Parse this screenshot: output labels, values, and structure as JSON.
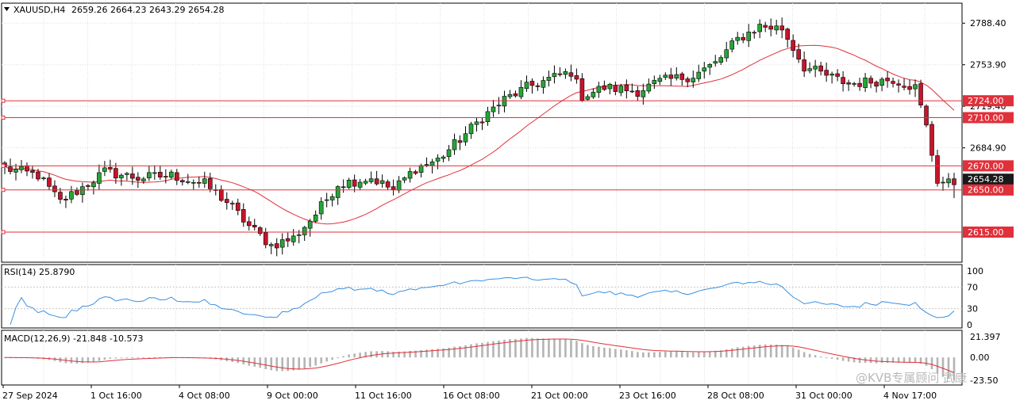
{
  "symbol_info": {
    "label": "XAUUSD,H4",
    "ohlc": "2659.26 2664.23 2643.29 2654.28"
  },
  "colors": {
    "bull": "#26a637",
    "bear": "#c8142b",
    "ma": "#e0303a",
    "level": "#e0303a",
    "rsi": "#3a8fe0",
    "macd_hist": "#b4b4b4",
    "macd_signal": "#e0303a",
    "grid": "#dddddd",
    "tag_dark": "#1a1a1a"
  },
  "watermark": "@KVB专属顾问 武康",
  "chart_data": [
    {
      "type": "candlestick",
      "title": "XAUUSD,H4",
      "ylim": [
        2590,
        2805
      ],
      "y_ticks": [
        "2788.40",
        "2753.90",
        "2719.40",
        "2684.90"
      ],
      "last_price": "2654.28",
      "horizontal_levels": [
        "2724.00",
        "2710.00",
        "2670.00",
        "2650.00",
        "2615.00"
      ],
      "x_labels": [
        "27 Sep 2024",
        "1 Oct 16:00",
        "4 Oct 08:00",
        "9 Oct 00:00",
        "11 Oct 16:00",
        "16 Oct 08:00",
        "21 Oct 00:00",
        "23 Oct 16:00",
        "28 Oct 08:00",
        "31 Oct 00:00",
        "4 Nov 17:00"
      ],
      "waypoints": [
        [
          0,
          2668
        ],
        [
          6,
          2662
        ],
        [
          10,
          2640
        ],
        [
          14,
          2652
        ],
        [
          18,
          2665
        ],
        [
          24,
          2660
        ],
        [
          30,
          2662
        ],
        [
          36,
          2655
        ],
        [
          40,
          2640
        ],
        [
          44,
          2620
        ],
        [
          48,
          2604
        ],
        [
          52,
          2610
        ],
        [
          56,
          2630
        ],
        [
          60,
          2655
        ],
        [
          66,
          2660
        ],
        [
          70,
          2650
        ],
        [
          74,
          2668
        ],
        [
          78,
          2675
        ],
        [
          82,
          2692
        ],
        [
          86,
          2710
        ],
        [
          90,
          2725
        ],
        [
          94,
          2735
        ],
        [
          98,
          2742
        ],
        [
          102,
          2748
        ],
        [
          104,
          2728
        ],
        [
          108,
          2735
        ],
        [
          114,
          2732
        ],
        [
          118,
          2740
        ],
        [
          124,
          2745
        ],
        [
          128,
          2755
        ],
        [
          132,
          2775
        ],
        [
          136,
          2786
        ],
        [
          140,
          2784
        ],
        [
          144,
          2752
        ],
        [
          148,
          2745
        ],
        [
          152,
          2738
        ],
        [
          156,
          2740
        ],
        [
          160,
          2742
        ],
        [
          164,
          2735
        ],
        [
          166,
          2702
        ],
        [
          168,
          2658
        ],
        [
          171,
          2654
        ]
      ],
      "ma_period": 20
    },
    {
      "type": "line",
      "title": "RSI(14) 25.8790",
      "ylim": [
        0,
        100
      ],
      "y_ticks": [
        "100",
        "70",
        "30",
        "0"
      ],
      "series": [
        {
          "name": "RSI(14)",
          "last": 25.879
        }
      ]
    },
    {
      "type": "bar+line",
      "title": "MACD(12,26,9) -21.848 -10.573",
      "y_ticks": [
        "21.397",
        "0.00",
        "-23.50"
      ],
      "series": [
        {
          "name": "MACD",
          "last": -21.848
        },
        {
          "name": "Signal",
          "last": -10.573
        }
      ]
    }
  ]
}
